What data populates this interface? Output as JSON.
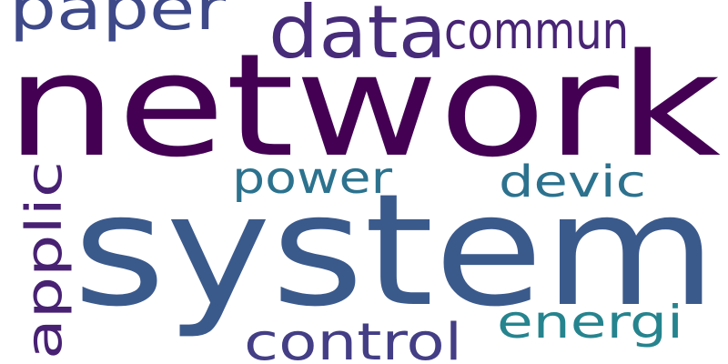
{
  "words": [
    {
      "text": "network",
      "color": "#440154",
      "rotation": 0
    },
    {
      "text": "system",
      "color": "#3b5a8c",
      "rotation": 0
    },
    {
      "text": "data",
      "color": "#472c7a",
      "rotation": 0
    },
    {
      "text": "paper",
      "color": "#3e4989",
      "rotation": 0
    },
    {
      "text": "commun",
      "color": "#482475",
      "rotation": 0
    },
    {
      "text": "power",
      "color": "#2c728e",
      "rotation": 0
    },
    {
      "text": "devic",
      "color": "#2c728e",
      "rotation": 0
    },
    {
      "text": "applic",
      "color": "#482173",
      "rotation": -90
    },
    {
      "text": "control",
      "color": "#433e85",
      "rotation": 0
    },
    {
      "text": "energi",
      "color": "#25848e",
      "rotation": 0
    }
  ]
}
